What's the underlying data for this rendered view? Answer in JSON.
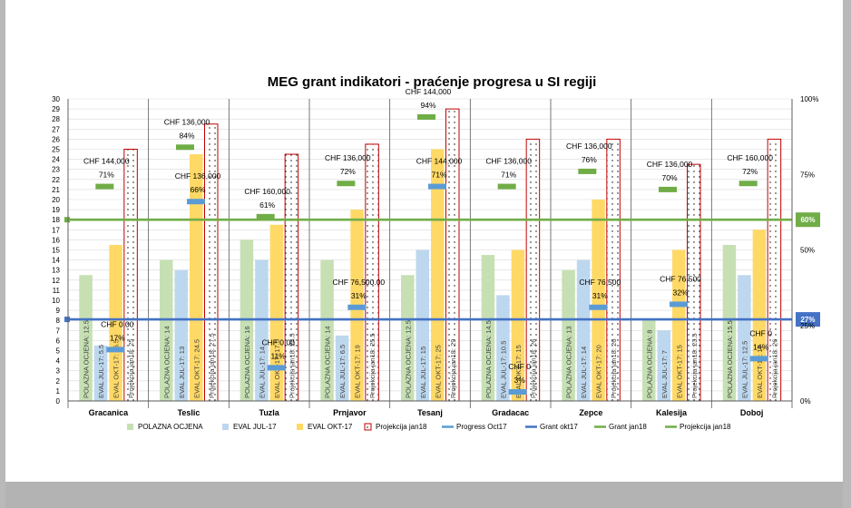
{
  "chart_data": {
    "type": "bar",
    "title": "MEG grant indikatori - praćenje progresa u SI regiji",
    "categories": [
      "Gracanica",
      "Teslic",
      "Tuzla",
      "Prnjavor",
      "Tesanj",
      "Gradacac",
      "Zepce",
      "Kalesija",
      "Doboj"
    ],
    "y_left": {
      "min": 0,
      "max": 30,
      "step": 1
    },
    "y_right": {
      "min": 0,
      "max": 100,
      "ticks": [
        "0%",
        "25%",
        "50%",
        "75%",
        "100%"
      ]
    },
    "series": [
      {
        "name": "POLAZNA OCJENA",
        "color": "#c6e0b4",
        "values": [
          12.5,
          14,
          16,
          14,
          12.5,
          14.5,
          13,
          8,
          15.5
        ],
        "bar_labels": [
          "POLAZNA OCJENA: 12.5",
          "POLAZNA OCJENA: 14",
          "POLAZNA OCJENA: 16",
          "POLAZNA OCJENA: 14",
          "POLAZNA OCJENA: 12.5",
          "POLAZNA OCJENA: 14.5",
          "POLAZNA OCJENA: 13",
          "POLAZNA OCJENA: 8",
          "POLAZNA OCJENA: 15.5"
        ]
      },
      {
        "name": "EVAL JUL-17",
        "color": "#bdd7ee",
        "values": [
          5.5,
          13,
          14,
          6.5,
          15,
          10.5,
          14,
          7,
          12.5
        ],
        "bar_labels": [
          "EVAL JUL-17: 5.5",
          "EVAL JUL-17: 13",
          "EVAL JUL-17: 14",
          "EVAL JUL-17: 6.5",
          "EVAL JUL-17: 15",
          "EVAL JUL-17: 10.5",
          "EVAL JUL-17: 14",
          "EVAL JUL-17: 7",
          "EVAL JUL-17: 12.5"
        ]
      },
      {
        "name": "EVAL OKT-17",
        "color": "#ffd966",
        "values": [
          15.5,
          24.5,
          17.5,
          19,
          25,
          15,
          20,
          15,
          17
        ],
        "bar_labels": [
          "EVAL OKT-17: 15.5",
          "EVAL OKT-17: 24.5",
          "EVAL OKT-17: 17.5",
          "EVAL OKT-17: 19",
          "EVAL OKT-17: 25",
          "EVAL OKT-17: 15",
          "EVAL OKT-17: 20",
          "EVAL OKT-17: 15",
          "EVAL OKT-17: 17"
        ]
      },
      {
        "name": "Projekcija jan18",
        "color": "#c00000",
        "values": [
          25,
          27.5,
          24.5,
          25.5,
          29,
          26,
          26,
          23.5,
          26
        ],
        "bar_labels": [
          "Projekcija jan18: 25",
          "Projekcija jan18: 27.5",
          "Projekcija jan18: 24.5",
          "Projekcija jan18: 25.5",
          "Projekcija jan18: 29",
          "Projekcija jan18: 26",
          "Projekcija jan18: 26",
          "Projekcija jan18: 23.5",
          "Projekcija jan18: 26"
        ]
      }
    ],
    "markers": [
      {
        "name": "Progress Oct17",
        "color": "#5b9bd5",
        "values_pct": [
          17,
          66,
          11,
          31,
          71,
          3,
          31,
          32,
          14
        ],
        "grants": [
          "CHF 0.00",
          "CHF 136,000",
          "CHF 0.00",
          "CHF 76,500.00",
          "CHF 144,000",
          "CHF 0",
          "CHF 76,500",
          "CHF 76,500",
          "CHF 0"
        ],
        "pct_labels": [
          "17%",
          "66%",
          "11%",
          "31%",
          "71%",
          "3%",
          "31%",
          "32%",
          "14%"
        ]
      },
      {
        "name": "Projekcija jan18",
        "color": "#70ad47",
        "values_pct": [
          71,
          84,
          61,
          72,
          94,
          71,
          76,
          70,
          72
        ],
        "grants": [
          "CHF 144,000",
          "CHF 136,000",
          "CHF 160,000",
          "CHF 136,000",
          "CHF 144,000",
          "CHF 136,000",
          "CHF 136,000",
          "CHF 136,000",
          "CHF 160,000"
        ],
        "pct_labels": [
          "71%",
          "84%",
          "61%",
          "72%",
          "94%",
          "71%",
          "76%",
          "70%",
          "72%"
        ]
      }
    ],
    "reference_lines": [
      {
        "name": "Grant okt17",
        "color": "#4472c4",
        "value_pct": 27,
        "label": "27%"
      },
      {
        "name": "Grant jan18",
        "color": "#70ad47",
        "value_pct": 60,
        "label": "60%"
      }
    ],
    "legend": {
      "position": "bottom",
      "entries": [
        {
          "label": "POLAZNA OCJENA",
          "kind": "swatch",
          "color": "#c6e0b4"
        },
        {
          "label": "EVAL JUL-17",
          "kind": "swatch",
          "color": "#bdd7ee"
        },
        {
          "label": "EVAL OKT-17",
          "kind": "swatch",
          "color": "#ffd966"
        },
        {
          "label": "Projekcija jan18",
          "kind": "dotted",
          "color": "#c00000"
        },
        {
          "label": "Progress Oct17",
          "kind": "line",
          "color": "#5b9bd5"
        },
        {
          "label": "Grant okt17",
          "kind": "line",
          "color": "#4472c4"
        },
        {
          "label": "Grant jan18",
          "kind": "line",
          "color": "#70ad47"
        },
        {
          "label": "Projekcija jan18",
          "kind": "line",
          "color": "#70ad47"
        }
      ]
    }
  }
}
